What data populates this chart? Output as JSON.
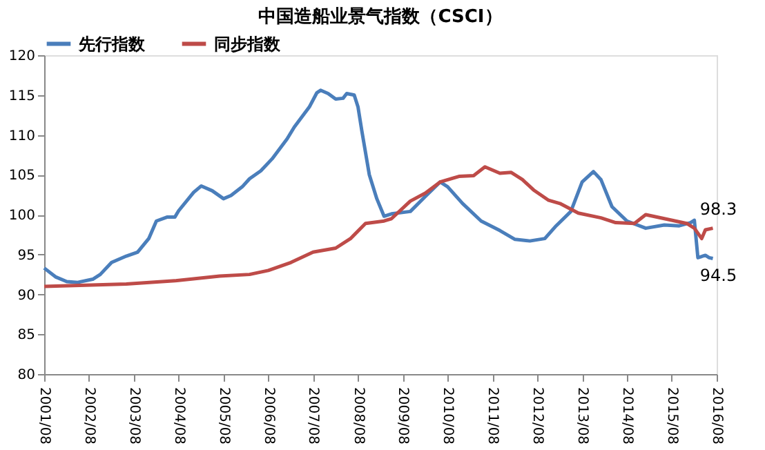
{
  "chart_data": {
    "type": "line",
    "title": "中国造船业景气指数（CSCI）",
    "legend": "top",
    "grid": false,
    "marker": "none",
    "line_style": "solid",
    "ylim": [
      80,
      120
    ],
    "yticks": [
      80,
      85,
      90,
      95,
      100,
      105,
      110,
      115,
      120
    ],
    "xlim": [
      "2001-08",
      "2016-08"
    ],
    "xticks": [
      {
        "value": "2001-08",
        "label": "2001/08"
      },
      {
        "value": "2002-08",
        "label": "2002/08"
      },
      {
        "value": "2003-08",
        "label": "2003/08"
      },
      {
        "value": "2004-08",
        "label": "2004/08"
      },
      {
        "value": "2005-08",
        "label": "2005/08"
      },
      {
        "value": "2006-08",
        "label": "2006/08"
      },
      {
        "value": "2007-08",
        "label": "2007/08"
      },
      {
        "value": "2008-08",
        "label": "2008/08"
      },
      {
        "value": "2009-08",
        "label": "2009/08"
      },
      {
        "value": "2010-08",
        "label": "2010/08"
      },
      {
        "value": "2011-08",
        "label": "2011/08"
      },
      {
        "value": "2012-08",
        "label": "2012/08"
      },
      {
        "value": "2013-08",
        "label": "2013/08"
      },
      {
        "value": "2014-08",
        "label": "2014/08"
      },
      {
        "value": "2015-08",
        "label": "2015/08"
      },
      {
        "value": "2016-08",
        "label": "2016/08"
      }
    ],
    "series": [
      {
        "name": "先行指数",
        "color": "#4a7ebb",
        "x": [
          "2001-08",
          "2001-11",
          "2002-02",
          "2002-05",
          "2002-09",
          "2002-11",
          "2003-02",
          "2003-06",
          "2003-09",
          "2003-12",
          "2004-02",
          "2004-05",
          "2004-07",
          "2004-08",
          "2004-12",
          "2005-02",
          "2005-05",
          "2005-08",
          "2005-10",
          "2006-01",
          "2006-03",
          "2006-06",
          "2006-09",
          "2007-01",
          "2007-03",
          "2007-07",
          "2007-09",
          "2007-10",
          "2007-12",
          "2008-02",
          "2008-04",
          "2008-05",
          "2008-07",
          "2008-08",
          "2008-09",
          "2008-11",
          "2009-01",
          "2009-03",
          "2009-05",
          "2009-10",
          "2010-02",
          "2010-06",
          "2010-08",
          "2010-12",
          "2011-05",
          "2011-10",
          "2012-02",
          "2012-06",
          "2012-10",
          "2013-01",
          "2013-05",
          "2013-08",
          "2013-11",
          "2014-01",
          "2014-04",
          "2014-08",
          "2015-01",
          "2015-06",
          "2015-10",
          "2016-01",
          "2016-02",
          "2016-03",
          "2016-05",
          "2016-06",
          "2016-07"
        ],
        "values": [
          93.3,
          92.2,
          91.6,
          91.5,
          91.9,
          92.5,
          94.0,
          94.8,
          95.3,
          97.0,
          99.2,
          99.7,
          99.7,
          100.5,
          102.8,
          103.6,
          103.0,
          102.0,
          102.4,
          103.5,
          104.5,
          105.5,
          107.0,
          109.5,
          111.0,
          113.5,
          115.3,
          115.6,
          115.2,
          114.5,
          114.6,
          115.2,
          115.0,
          113.5,
          110.5,
          105.0,
          102.0,
          99.8,
          100.1,
          100.4,
          102.3,
          104.1,
          103.5,
          101.4,
          99.2,
          98.0,
          96.9,
          96.7,
          97.0,
          98.6,
          100.4,
          104.1,
          105.4,
          104.4,
          101.0,
          99.2,
          98.3,
          98.7,
          98.6,
          99.0,
          99.3,
          94.6,
          94.9,
          94.6,
          94.5
        ],
        "value_labels": [
          null,
          null,
          null,
          null,
          null,
          null,
          null,
          null,
          null,
          null,
          null,
          null,
          null,
          null,
          null,
          null,
          null,
          null,
          null,
          null,
          null,
          null,
          null,
          null,
          null,
          null,
          null,
          null,
          null,
          null,
          null,
          null,
          null,
          null,
          null,
          null,
          null,
          null,
          null,
          null,
          null,
          null,
          null,
          null,
          null,
          null,
          null,
          null,
          null,
          null,
          null,
          null,
          null,
          null,
          null,
          null,
          null,
          null,
          null,
          null,
          null,
          null,
          null,
          null,
          "94.5"
        ]
      },
      {
        "name": "同步指数",
        "color": "#be4b48",
        "x": [
          "2001-08",
          "2003-06",
          "2004-07",
          "2005-07",
          "2006-03",
          "2006-08",
          "2007-02",
          "2007-08",
          "2008-02",
          "2008-06",
          "2008-10",
          "2009-03",
          "2009-05",
          "2009-10",
          "2010-02",
          "2010-06",
          "2010-11",
          "2011-03",
          "2011-06",
          "2011-10",
          "2012-01",
          "2012-04",
          "2012-07",
          "2012-11",
          "2013-02",
          "2013-07",
          "2014-01",
          "2014-05",
          "2014-10",
          "2015-01",
          "2015-06",
          "2015-12",
          "2016-02",
          "2016-04",
          "2016-05",
          "2016-07"
        ],
        "values": [
          91.0,
          91.3,
          91.7,
          92.3,
          92.5,
          93.0,
          94.0,
          95.3,
          95.8,
          97.0,
          98.9,
          99.2,
          99.5,
          101.7,
          102.7,
          104.1,
          104.8,
          104.9,
          106.0,
          105.2,
          105.3,
          104.4,
          103.1,
          101.8,
          101.4,
          100.2,
          99.6,
          99.0,
          98.9,
          100.0,
          99.5,
          98.9,
          98.3,
          97.0,
          98.1,
          98.3
        ],
        "value_labels": [
          null,
          null,
          null,
          null,
          null,
          null,
          null,
          null,
          null,
          null,
          null,
          null,
          null,
          null,
          null,
          null,
          null,
          null,
          null,
          null,
          null,
          null,
          null,
          null,
          null,
          null,
          null,
          null,
          null,
          null,
          null,
          null,
          null,
          null,
          null,
          "98.3"
        ]
      }
    ]
  }
}
